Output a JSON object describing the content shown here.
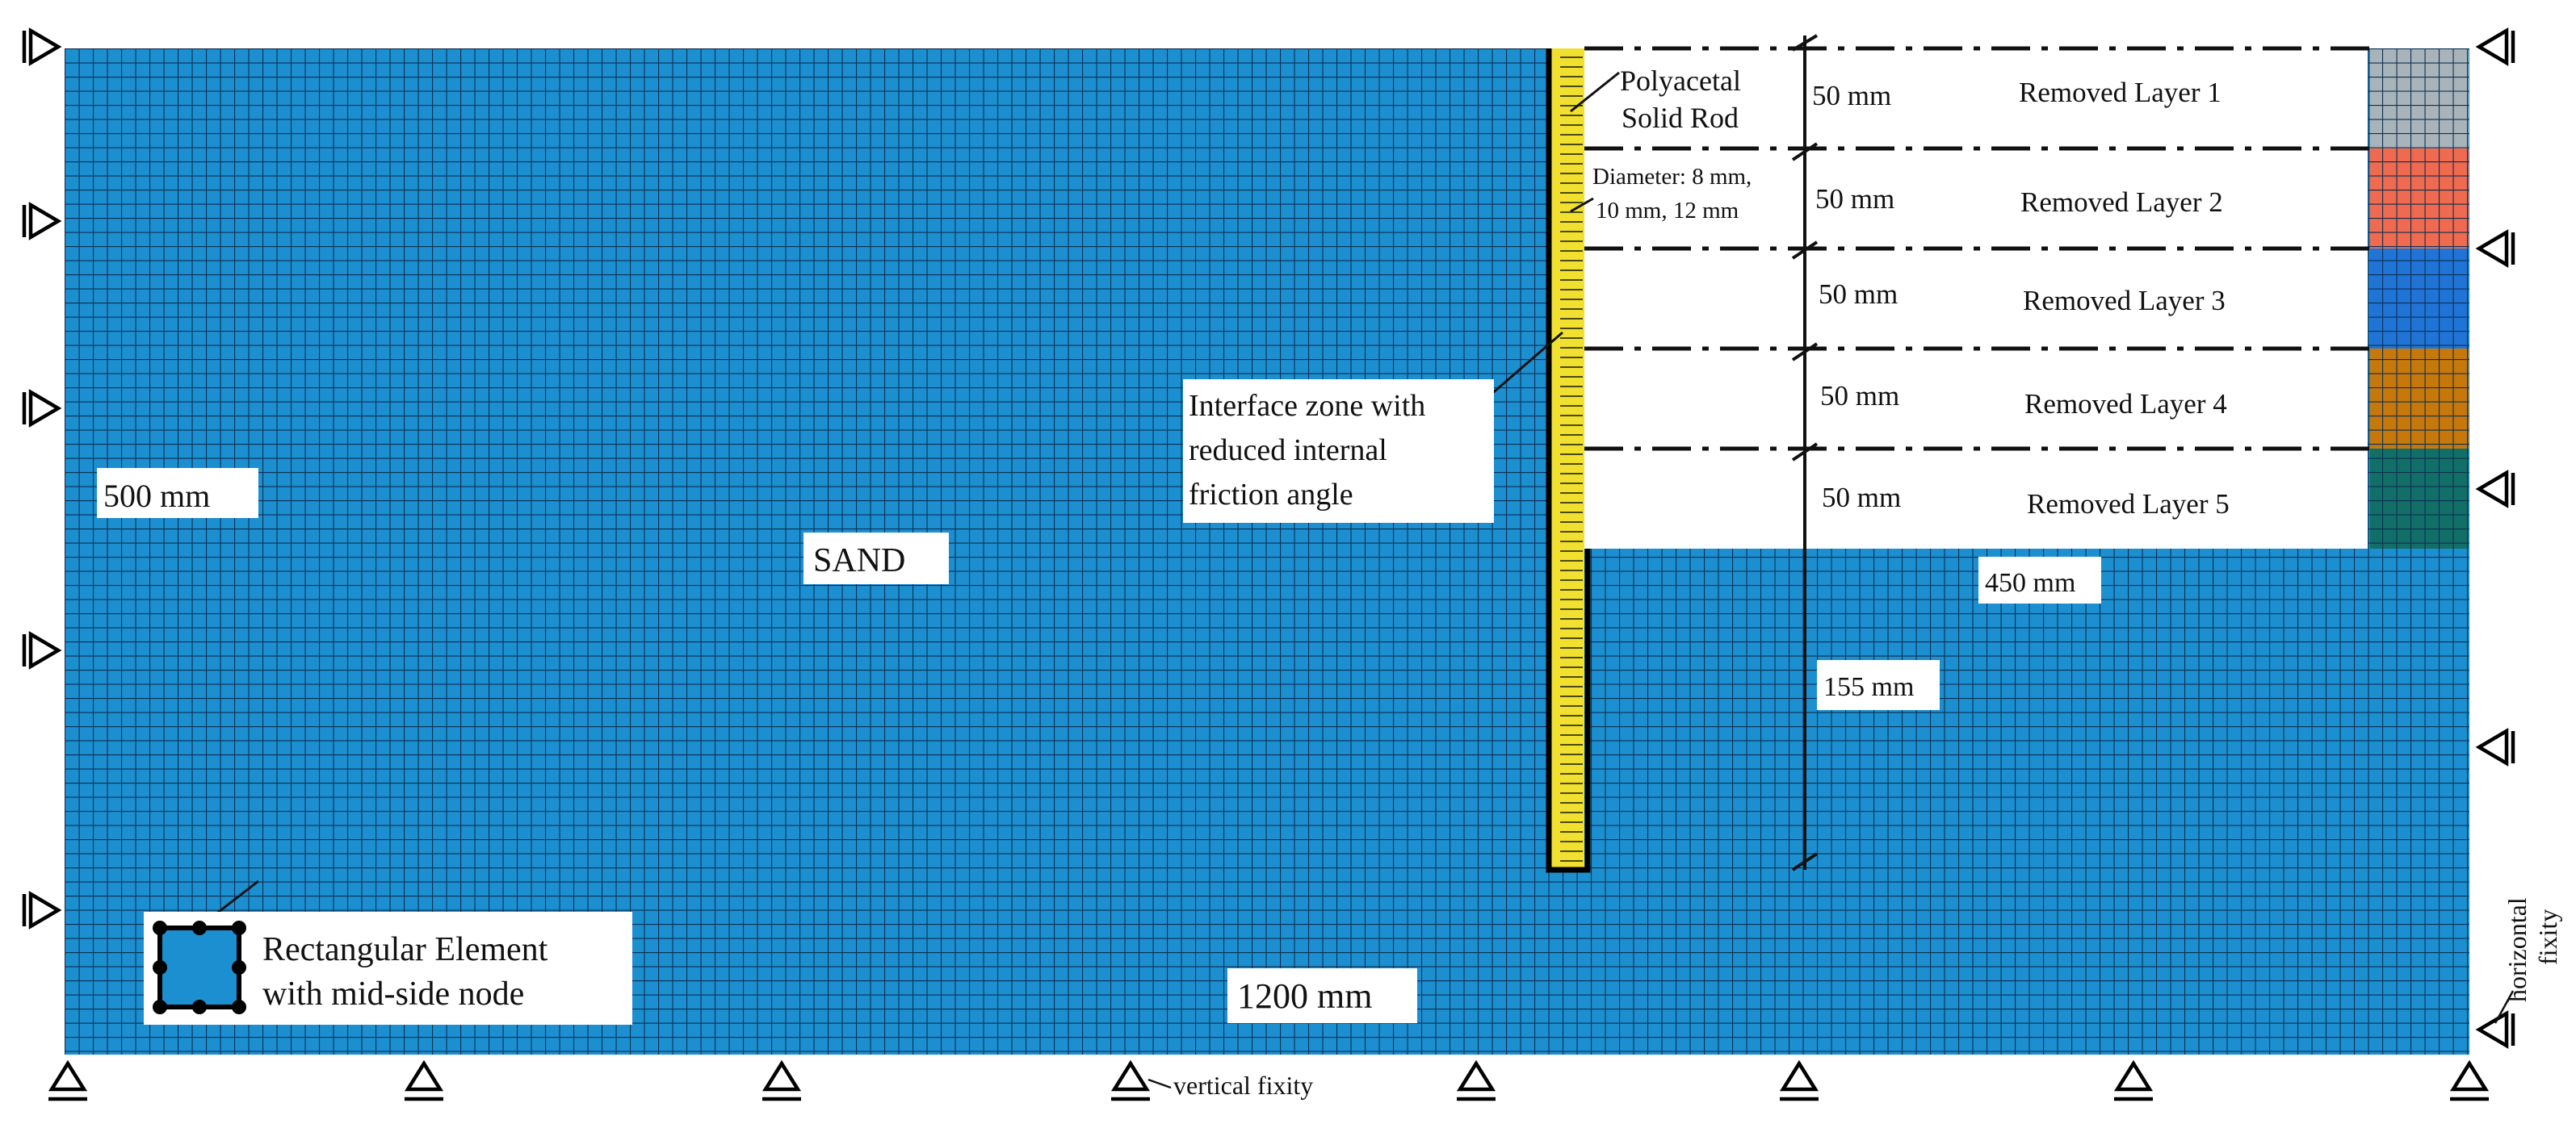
{
  "colors": {
    "sand": "#1c8fd0",
    "grid": "#0d2f52",
    "rod": "#f2e030",
    "layer1": "#a9b4ba",
    "layer2": "#ef6a4e",
    "layer3": "#1f74d6",
    "layer4": "#c6780a",
    "layer5": "#116f68"
  },
  "labels": {
    "sand": "SAND",
    "width": "1200 mm",
    "height": "500 mm",
    "excavation_width": "450 mm",
    "embedment": "155 mm",
    "rod_title_line1": "Polyacetal",
    "rod_title_line2": "Solid Rod",
    "diameter_line1": "Diameter: 8 mm,",
    "diameter_line2": "10 mm, 12 mm",
    "interface_line1": "Interface zone with",
    "interface_line2": "reduced internal",
    "interface_line3": "friction angle",
    "element_line1": "Rectangular Element",
    "element_line2": "with mid-side node",
    "vertical_fixity": "vertical fixity",
    "horizontal_fixity_line1": "horizontal",
    "horizontal_fixity_line2": "fixity"
  },
  "layers": [
    {
      "name": "Removed Layer 1",
      "thickness": "50 mm"
    },
    {
      "name": "Removed Layer 2",
      "thickness": "50 mm"
    },
    {
      "name": "Removed Layer 3",
      "thickness": "50 mm"
    },
    {
      "name": "Removed Layer 4",
      "thickness": "50 mm"
    },
    {
      "name": "Removed Layer 5",
      "thickness": "50 mm"
    }
  ]
}
